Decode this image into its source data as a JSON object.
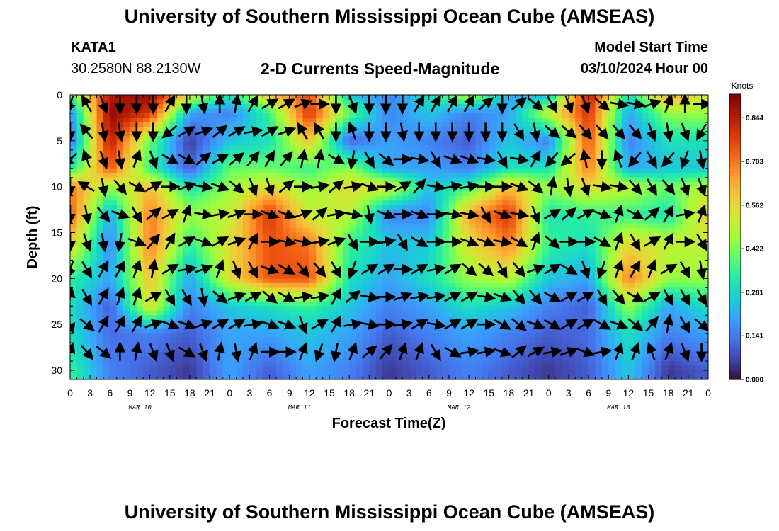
{
  "header": {
    "title": "University of Southern Mississippi Ocean Cube (AMSEAS)",
    "station_id": "KATA1",
    "coordinates": "30.2580N  88.2130W",
    "plot_title": "2-D Currents Speed-Magnitude",
    "start_label": "Model Start Time",
    "start_value": "03/10/2024 Hour 00"
  },
  "footer": {
    "title": "University of Southern Mississippi Ocean Cube (AMSEAS)"
  },
  "colors": {
    "scale": [
      "#30123b",
      "#4145ab",
      "#4675ed",
      "#39a2fc",
      "#1bcfd4",
      "#24eca6",
      "#61fc6c",
      "#a4fc3b",
      "#d1e834",
      "#f3c63a",
      "#fe9b2d",
      "#f36315",
      "#d93806",
      "#b11901",
      "#7a0402"
    ]
  },
  "chart_data": {
    "type": "heatmap",
    "xlabel": "Forecast Time(Z)",
    "ylabel": "Depth (ft)",
    "x_tick_labels": [
      "0",
      "3",
      "6",
      "9",
      "12",
      "15",
      "18",
      "21",
      "0",
      "3",
      "6",
      "9",
      "12",
      "15",
      "18",
      "21",
      "0",
      "3",
      "6",
      "9",
      "12",
      "15",
      "18",
      "21",
      "0",
      "3",
      "6",
      "9",
      "12",
      "15",
      "18",
      "21",
      "0"
    ],
    "x_range_hours": [
      0,
      96
    ],
    "date_labels": [
      {
        "text": "MAR 10",
        "hour": 10.5
      },
      {
        "text": "MAR 11",
        "hour": 34.5
      },
      {
        "text": "MAR 12",
        "hour": 58.5
      },
      {
        "text": "MAR 13",
        "hour": 82.5
      }
    ],
    "y_ticks": [
      0,
      5,
      10,
      15,
      20,
      25,
      30
    ],
    "ylim": [
      0,
      31
    ],
    "colorbar": {
      "label": "Knots",
      "ticks": [
        "0.844",
        "0.703",
        "0.562",
        "0.422",
        "0.281",
        "0.141",
        "0.000"
      ],
      "tick_values": [
        0.844,
        0.703,
        0.562,
        0.422,
        0.281,
        0.141,
        0.0
      ],
      "range": [
        0,
        0.92
      ]
    },
    "depth_levels": [
      0,
      2,
      5,
      8,
      10,
      13,
      16,
      20,
      23,
      26,
      30
    ],
    "hours": [
      0,
      6,
      12,
      18,
      24,
      30,
      36,
      42,
      48,
      54,
      60,
      66,
      72,
      78,
      84,
      90,
      96
    ],
    "speed_knots": [
      [
        0.35,
        0.85,
        0.9,
        0.55,
        0.3,
        0.6,
        0.75,
        0.25,
        0.15,
        0.3,
        0.5,
        0.2,
        0.25,
        0.85,
        0.3,
        0.65,
        0.5
      ],
      [
        0.15,
        0.9,
        0.8,
        0.2,
        0.15,
        0.35,
        0.8,
        0.4,
        0.15,
        0.25,
        0.15,
        0.2,
        0.5,
        0.8,
        0.2,
        0.45,
        0.45
      ],
      [
        0.1,
        0.85,
        0.4,
        0.05,
        0.25,
        0.3,
        0.6,
        0.1,
        0.2,
        0.15,
        0.1,
        0.25,
        0.15,
        0.75,
        0.15,
        0.3,
        0.3
      ],
      [
        0.3,
        0.75,
        0.35,
        0.1,
        0.4,
        0.4,
        0.35,
        0.45,
        0.2,
        0.2,
        0.15,
        0.3,
        0.3,
        0.7,
        0.2,
        0.25,
        0.25
      ],
      [
        0.7,
        0.45,
        0.6,
        0.3,
        0.45,
        0.55,
        0.45,
        0.55,
        0.55,
        0.25,
        0.35,
        0.6,
        0.45,
        0.55,
        0.5,
        0.4,
        0.5
      ],
      [
        0.75,
        0.2,
        0.7,
        0.45,
        0.5,
        0.8,
        0.5,
        0.5,
        0.15,
        0.15,
        0.65,
        0.8,
        0.3,
        0.35,
        0.35,
        0.3,
        0.6
      ],
      [
        0.6,
        0.15,
        0.7,
        0.35,
        0.55,
        0.75,
        0.7,
        0.35,
        0.25,
        0.25,
        0.55,
        0.7,
        0.35,
        0.3,
        0.55,
        0.5,
        0.5
      ],
      [
        0.35,
        0.2,
        0.6,
        0.2,
        0.55,
        0.75,
        0.75,
        0.3,
        0.2,
        0.3,
        0.45,
        0.5,
        0.25,
        0.2,
        0.7,
        0.45,
        0.45
      ],
      [
        0.3,
        0.1,
        0.55,
        0.15,
        0.25,
        0.3,
        0.35,
        0.25,
        0.15,
        0.2,
        0.3,
        0.25,
        0.15,
        0.1,
        0.45,
        0.2,
        0.3
      ],
      [
        0.3,
        0.12,
        0.15,
        0.1,
        0.2,
        0.2,
        0.25,
        0.2,
        0.1,
        0.15,
        0.2,
        0.15,
        0.1,
        0.12,
        0.3,
        0.15,
        0.2
      ],
      [
        0.35,
        0.15,
        0.1,
        0.05,
        0.2,
        0.1,
        0.2,
        0.15,
        0.05,
        0.1,
        0.15,
        0.1,
        0.05,
        0.1,
        0.25,
        0.05,
        0.1
      ]
    ],
    "vector_hours": [
      0,
      2.5,
      5,
      7.5,
      10,
      12.5,
      15,
      17.5,
      20,
      22.5,
      25,
      27.5,
      30,
      32.5,
      35,
      37.5,
      40,
      42.5,
      45,
      47.5,
      50,
      52.5,
      55,
      57.5,
      60,
      62.5,
      65,
      67.5,
      70,
      72.5,
      75,
      77.5,
      80,
      82.5,
      85,
      87.5,
      90,
      92.5,
      95
    ],
    "vector_depths": [
      1,
      4,
      7,
      10,
      13,
      16,
      19,
      22,
      25,
      28
    ],
    "vector_direction_deg": [
      [
        200,
        330,
        160,
        180,
        180,
        180,
        30,
        180,
        170,
        0,
        10,
        30,
        60,
        60,
        70,
        90,
        180,
        160,
        180,
        180,
        180,
        30,
        30,
        30,
        30,
        50,
        180,
        50,
        130,
        150,
        160,
        160,
        130,
        100,
        100,
        70,
        20,
        0,
        90
      ],
      [
        180,
        320,
        170,
        170,
        180,
        180,
        230,
        60,
        70,
        50,
        60,
        80,
        60,
        70,
        330,
        330,
        180,
        340,
        180,
        180,
        170,
        180,
        180,
        180,
        180,
        180,
        180,
        150,
        170,
        130,
        130,
        140,
        140,
        140,
        140,
        160,
        170,
        160,
        210
      ],
      [
        230,
        340,
        160,
        170,
        20,
        160,
        120,
        120,
        50,
        60,
        50,
        40,
        30,
        40,
        10,
        10,
        120,
        190,
        150,
        130,
        90,
        100,
        150,
        110,
        110,
        100,
        150,
        100,
        30,
        220,
        230,
        350,
        180,
        340,
        220,
        150,
        220,
        200,
        170
      ],
      [
        180,
        300,
        170,
        140,
        120,
        60,
        90,
        70,
        100,
        110,
        130,
        160,
        160,
        50,
        90,
        80,
        50,
        80,
        110,
        90,
        60,
        40,
        100,
        80,
        80,
        90,
        90,
        110,
        130,
        10,
        170,
        160,
        100,
        100,
        140,
        150,
        140,
        160,
        160
      ],
      [
        180,
        170,
        140,
        110,
        150,
        50,
        60,
        20,
        100,
        80,
        70,
        90,
        110,
        110,
        70,
        50,
        80,
        100,
        170,
        110,
        90,
        110,
        90,
        100,
        100,
        150,
        110,
        100,
        160,
        60,
        50,
        60,
        110,
        20,
        120,
        50,
        30,
        80,
        20
      ],
      [
        180,
        160,
        170,
        190,
        110,
        40,
        30,
        60,
        110,
        60,
        70,
        30,
        90,
        100,
        100,
        80,
        70,
        150,
        90,
        80,
        150,
        120,
        90,
        90,
        110,
        110,
        100,
        120,
        20,
        130,
        90,
        90,
        120,
        20,
        150,
        60,
        30,
        90,
        150
      ],
      [
        200,
        150,
        30,
        30,
        20,
        10,
        60,
        80,
        70,
        20,
        160,
        150,
        110,
        120,
        140,
        140,
        150,
        200,
        60,
        60,
        90,
        60,
        80,
        60,
        130,
        130,
        150,
        140,
        70,
        60,
        120,
        160,
        200,
        20,
        30,
        20,
        60,
        150,
        170
      ],
      [
        10,
        150,
        30,
        20,
        20,
        60,
        150,
        150,
        170,
        130,
        70,
        60,
        130,
        120,
        80,
        80,
        30,
        50,
        100,
        90,
        70,
        80,
        80,
        60,
        60,
        100,
        110,
        140,
        140,
        120,
        60,
        60,
        150,
        140,
        120,
        60,
        150,
        150,
        150
      ],
      [
        160,
        130,
        30,
        30,
        30,
        70,
        110,
        110,
        70,
        60,
        60,
        80,
        110,
        110,
        160,
        60,
        30,
        80,
        100,
        90,
        80,
        60,
        100,
        60,
        60,
        90,
        120,
        130,
        110,
        120,
        60,
        60,
        120,
        110,
        130,
        40,
        10,
        150,
        130
      ],
      [
        20,
        140,
        130,
        0,
        10,
        160,
        160,
        120,
        160,
        10,
        170,
        20,
        90,
        90,
        20,
        200,
        190,
        20,
        50,
        40,
        20,
        20,
        150,
        120,
        80,
        80,
        110,
        50,
        60,
        80,
        70,
        110,
        80,
        20,
        20,
        340,
        20,
        160,
        180
      ]
    ]
  }
}
